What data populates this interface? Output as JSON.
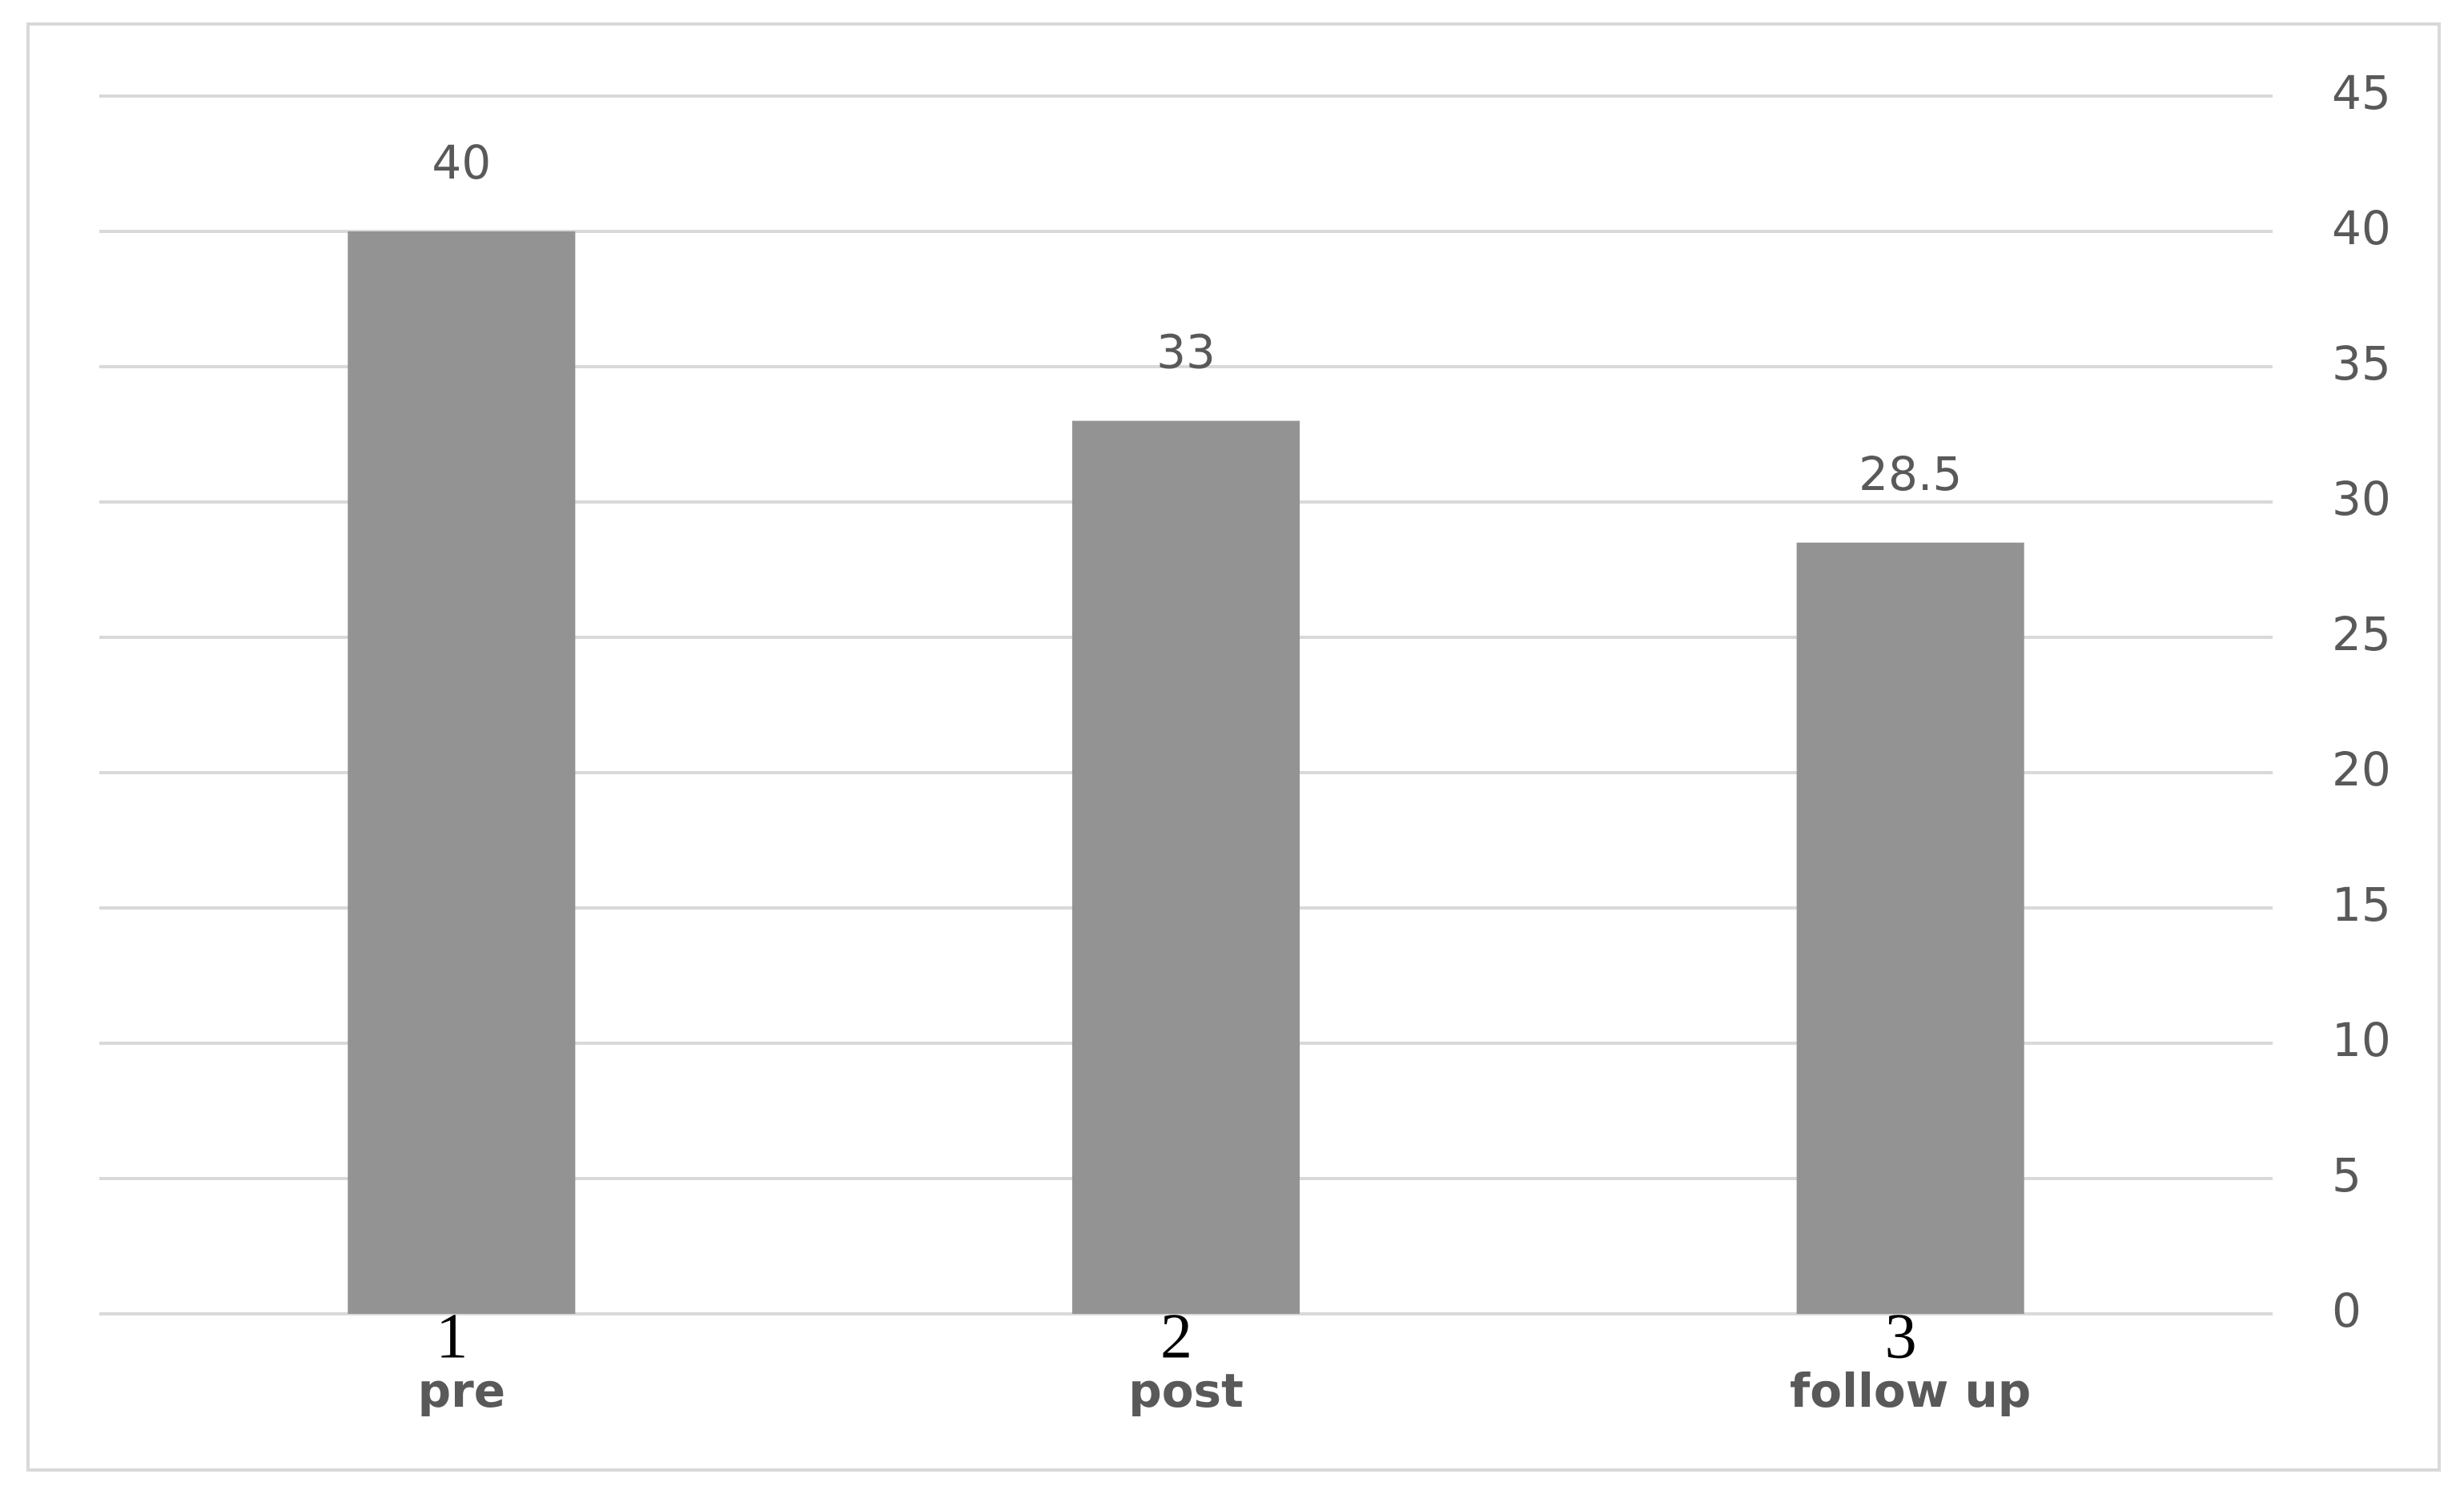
{
  "chart_data": {
    "type": "bar",
    "categories": [
      "pre",
      "post",
      "follow up"
    ],
    "index_labels": [
      1,
      2,
      3
    ],
    "values": [
      40,
      33,
      28.5
    ],
    "color": "#939393",
    "ylim": [
      0,
      45
    ],
    "yticks": [
      0,
      5,
      10,
      15,
      20,
      25,
      30,
      35,
      40,
      45
    ],
    "grid": true,
    "y_axis_side": "right",
    "show_value_labels": true
  }
}
